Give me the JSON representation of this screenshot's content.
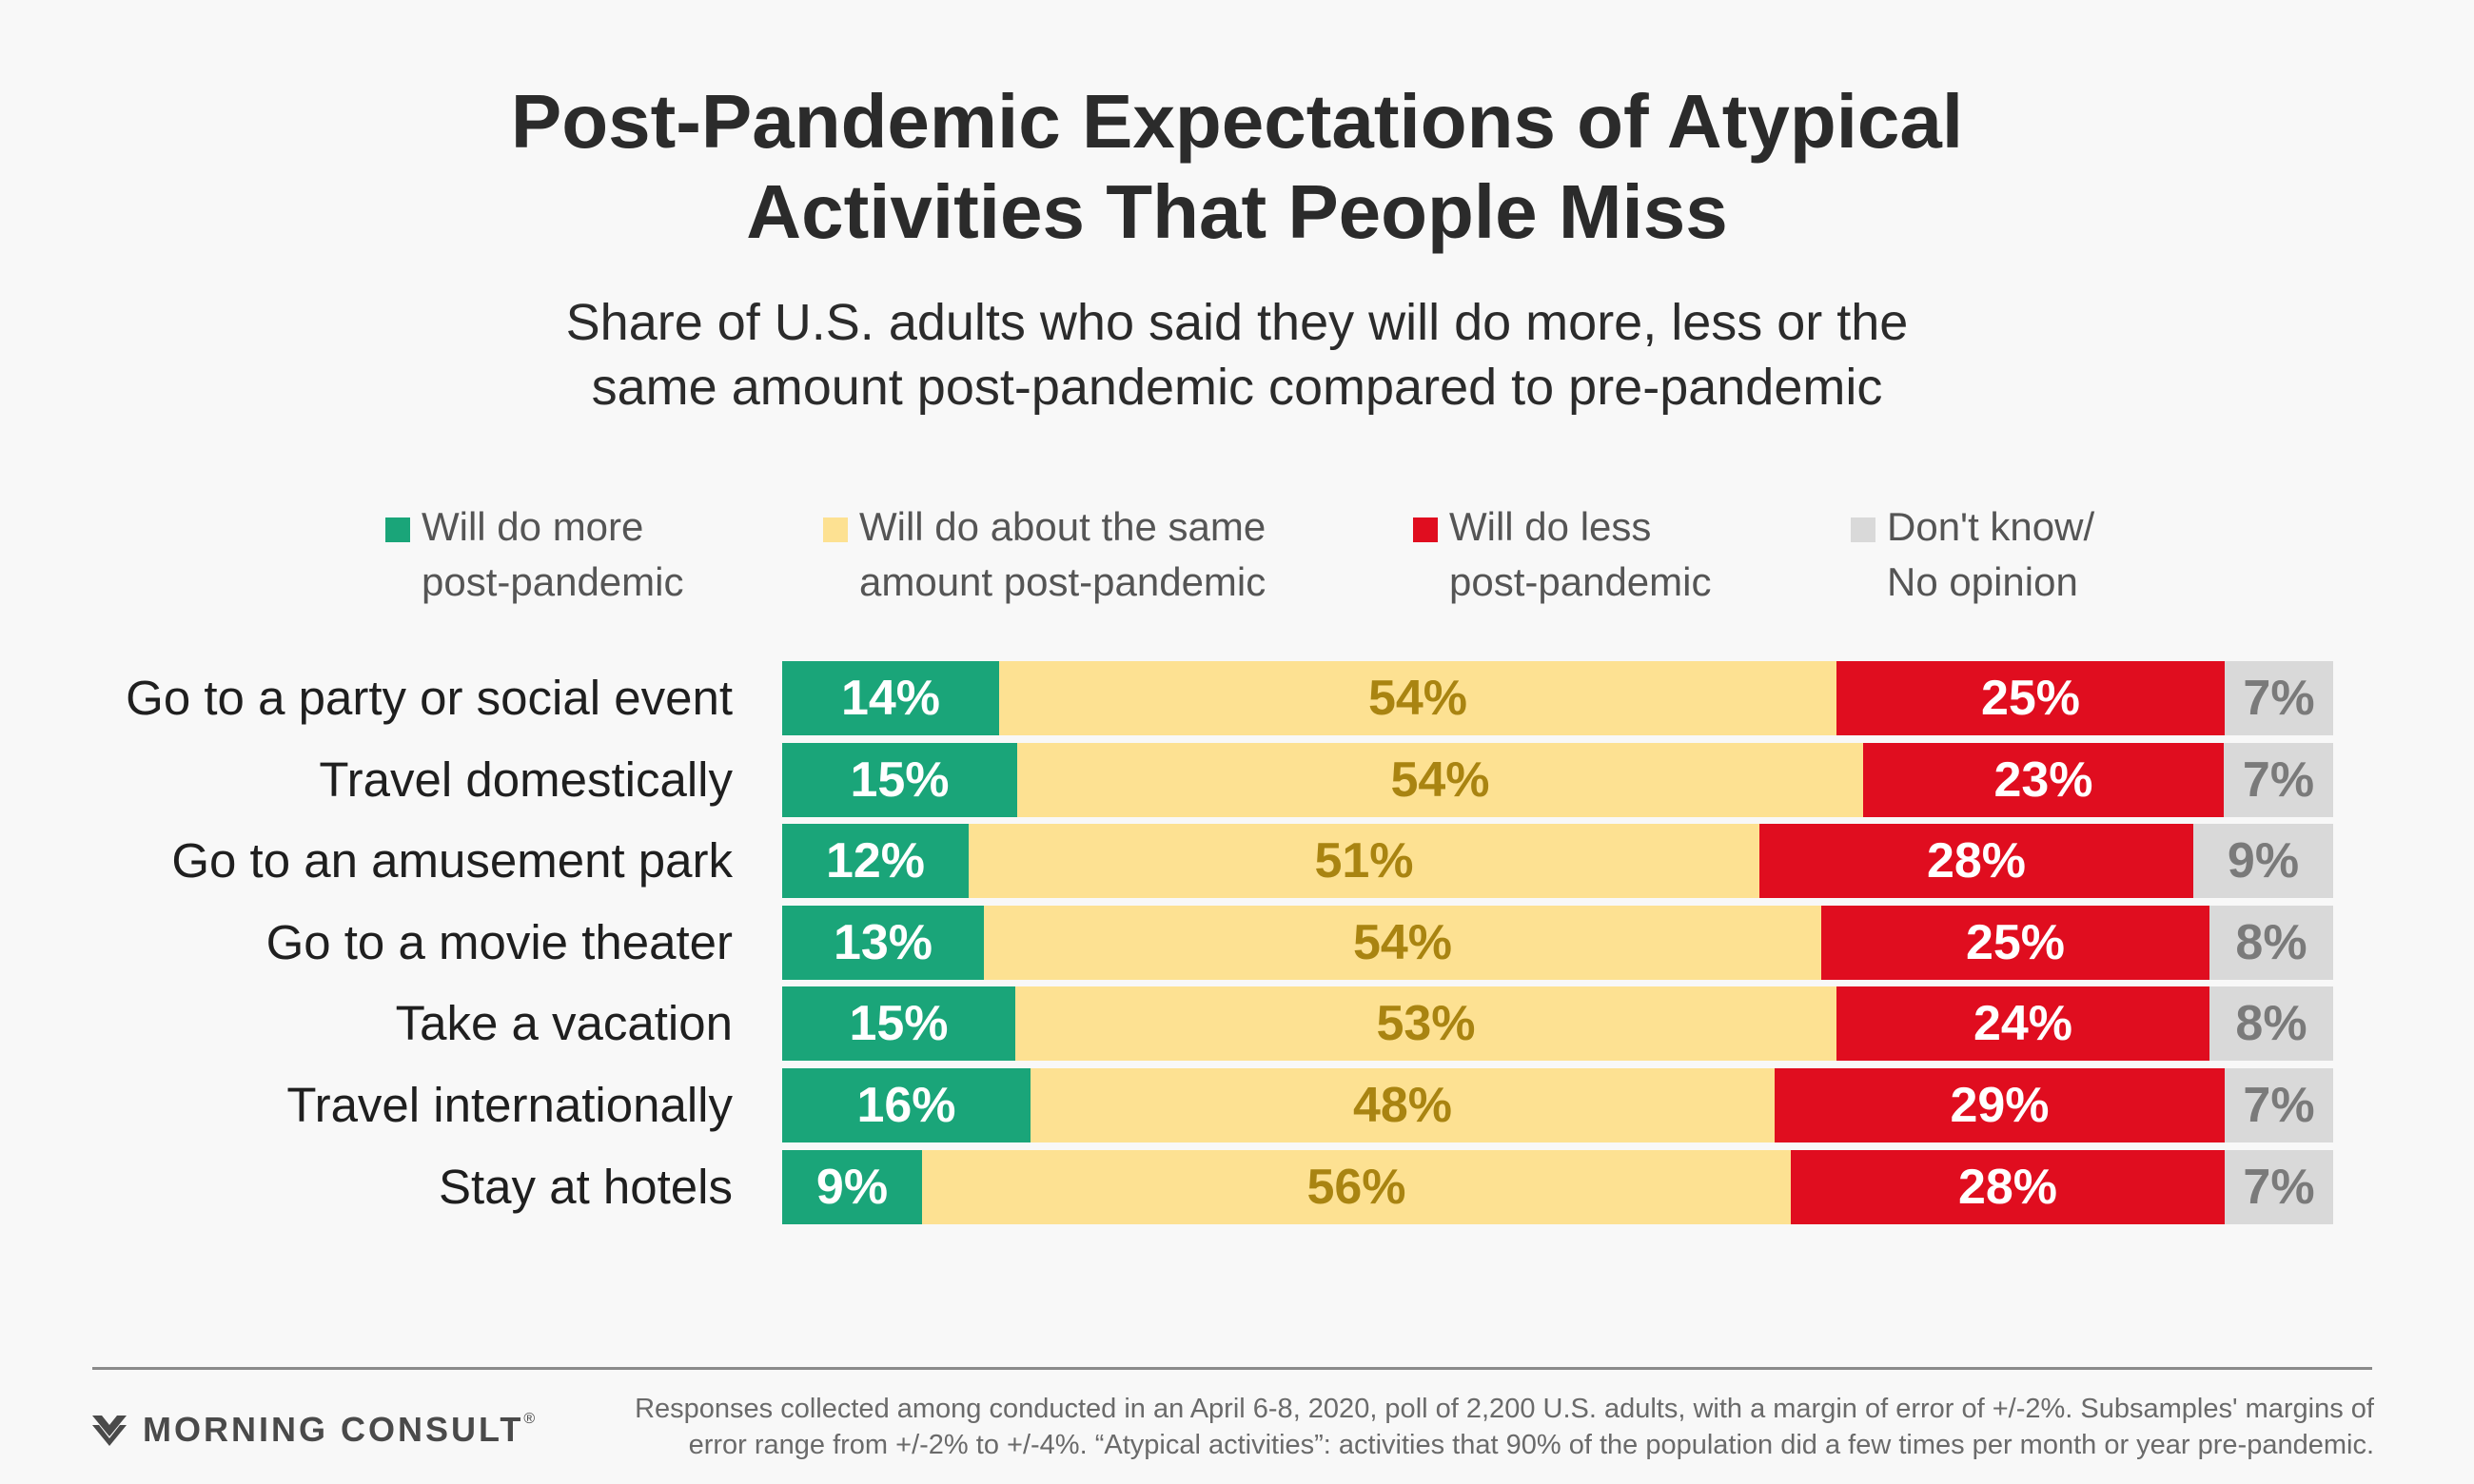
{
  "title_lines": [
    "Post-Pandemic Expectations of Atypical",
    "Activities That People Miss"
  ],
  "subtitle_lines": [
    "Share of U.S. adults who said they will do more, less or the",
    "same amount post-pandemic compared to pre-pandemic"
  ],
  "chart_data": {
    "type": "bar",
    "orientation": "horizontal",
    "stacked": true,
    "normalized_percent": true,
    "categories": [
      "Go to a party or social event",
      "Travel domestically",
      "Go to an amusement park",
      "Go to a movie theater",
      "Take a vacation",
      "Travel internationally",
      "Stay at hotels"
    ],
    "series": [
      {
        "name": "Will do more post-pandemic",
        "legend_lines": [
          "Will do more",
          "post-pandemic"
        ],
        "color": "#1aa579",
        "label_color": "#ffffff",
        "values": [
          14,
          15,
          12,
          13,
          15,
          16,
          9
        ]
      },
      {
        "name": "Will do about the same amount post-pandemic",
        "legend_lines": [
          "Will do about the same",
          "amount post-pandemic"
        ],
        "color": "#fde192",
        "label_color": "#a98411",
        "values": [
          54,
          54,
          51,
          54,
          53,
          48,
          56
        ]
      },
      {
        "name": "Will do less post-pandemic",
        "legend_lines": [
          "Will do less",
          "post-pandemic"
        ],
        "color": "#e00d1f",
        "label_color": "#ffffff",
        "values": [
          25,
          23,
          28,
          25,
          24,
          29,
          28
        ]
      },
      {
        "name": "Don't know/ No opinion",
        "legend_lines": [
          "Don't know/",
          "No opinion"
        ],
        "color": "#d9d9d9",
        "label_color": "#7a7a7a",
        "values": [
          7,
          7,
          9,
          8,
          8,
          7,
          7
        ]
      }
    ],
    "value_suffix": "%",
    "legend_position": "top",
    "grid": false
  },
  "footer": {
    "brand": "MORNING CONSULT",
    "brand_mark": "®",
    "note_lines": [
      "Responses collected among conducted in an April 6-8, 2020, poll of 2,200 U.S. adults, with a margin of error of +/-2%. Subsamples' margins of",
      "error range from +/-2% to +/-4%. “Atypical activities”: activities that 90% of the population did a few times per month or year pre-pandemic."
    ]
  }
}
